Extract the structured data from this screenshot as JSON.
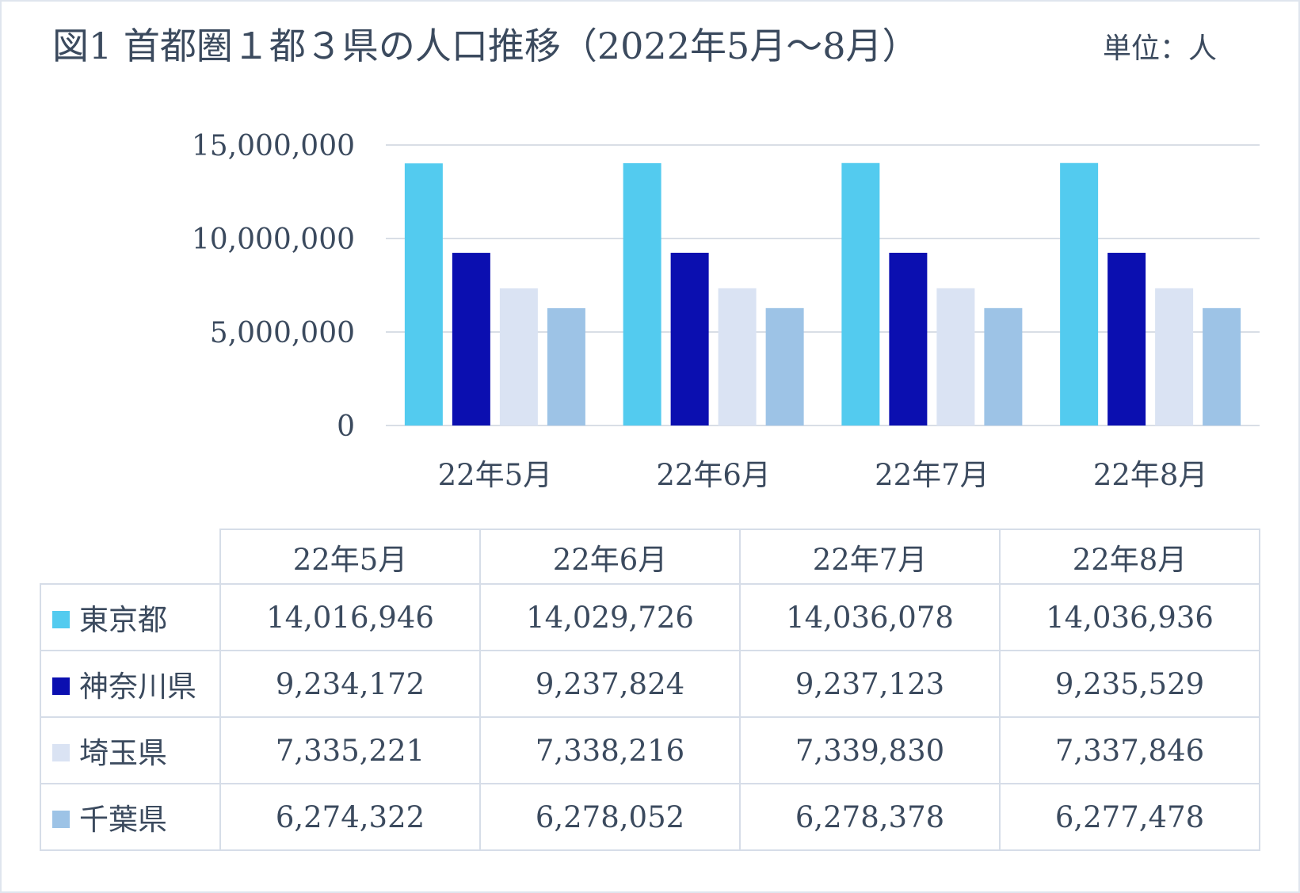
{
  "title": "図1 首都圏１都３県の人口推移（2022年5月〜8月）",
  "unit_label": "単位：人",
  "chart_data": {
    "type": "bar",
    "categories": [
      "22年5月",
      "22年6月",
      "22年7月",
      "22年8月"
    ],
    "series": [
      {
        "name": "東京都",
        "color": "#53cbef",
        "values": [
          14016946,
          14029726,
          14036078,
          14036936
        ]
      },
      {
        "name": "神奈川県",
        "color": "#0b0fb0",
        "values": [
          9234172,
          9237824,
          9237123,
          9235529
        ]
      },
      {
        "name": "埼玉県",
        "color": "#dae3f3",
        "values": [
          7335221,
          7338216,
          7339830,
          7337846
        ]
      },
      {
        "name": "千葉県",
        "color": "#9dc3e6",
        "values": [
          6274322,
          6278052,
          6278378,
          6277478
        ]
      }
    ],
    "ylim": [
      0,
      15000000
    ],
    "yticks": [
      0,
      5000000,
      10000000,
      15000000
    ],
    "ytick_labels": [
      "0",
      "5,000,000",
      "10,000,000",
      "15,000,000"
    ],
    "grid": true,
    "legend": "data-table-below"
  },
  "table": {
    "headers": [
      "22年5月",
      "22年6月",
      "22年7月",
      "22年8月"
    ],
    "rows": [
      {
        "label": "東京都",
        "values": [
          "14,016,946",
          "14,029,726",
          "14,036,078",
          "14,036,936"
        ]
      },
      {
        "label": "神奈川県",
        "values": [
          "9,234,172",
          "9,237,824",
          "9,237,123",
          "9,235,529"
        ]
      },
      {
        "label": "埼玉県",
        "values": [
          "7,335,221",
          "7,338,216",
          "7,339,830",
          "7,337,846"
        ]
      },
      {
        "label": "千葉県",
        "values": [
          "6,274,322",
          "6,278,052",
          "6,278,378",
          "6,277,478"
        ]
      }
    ]
  }
}
